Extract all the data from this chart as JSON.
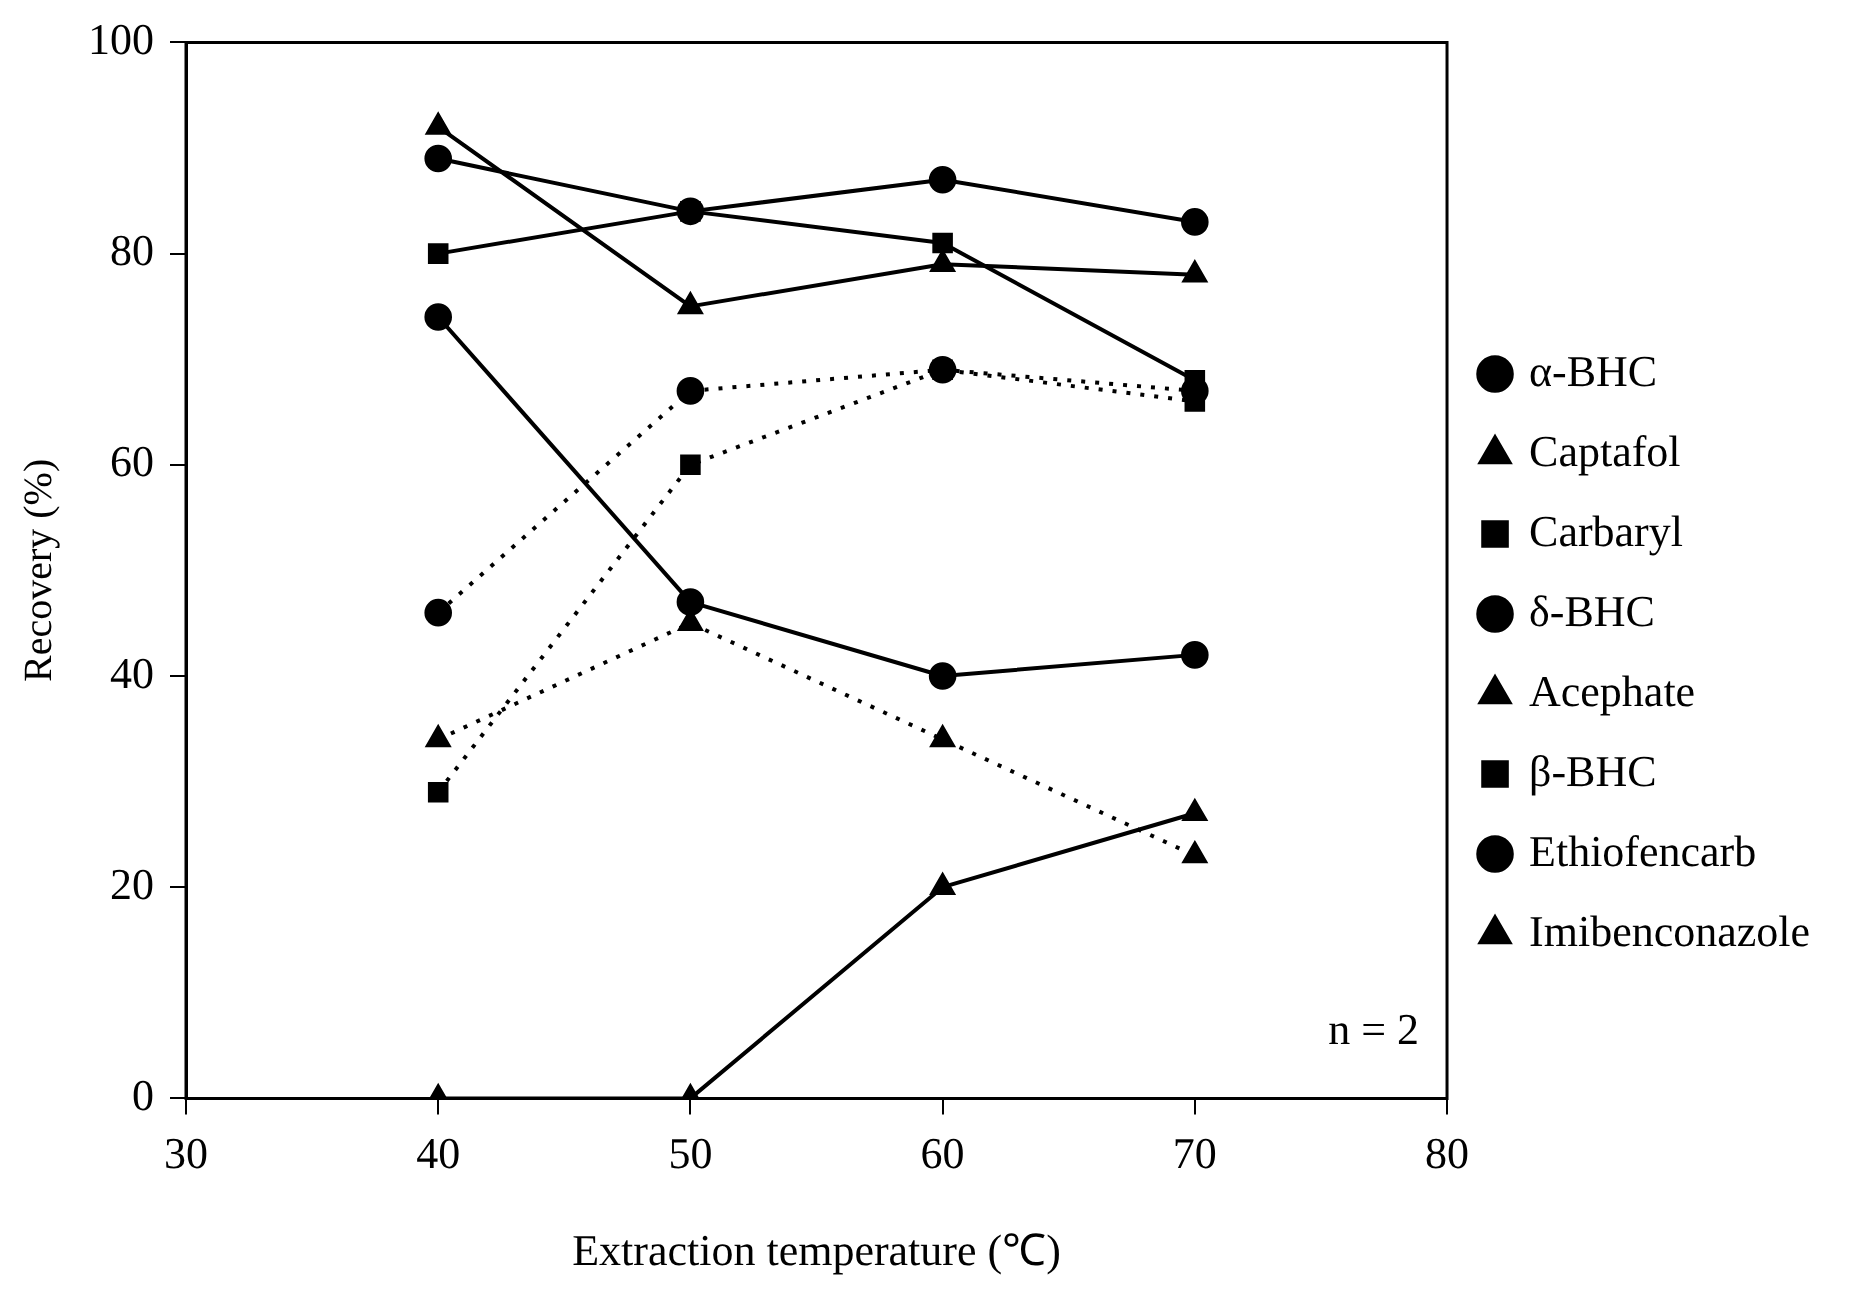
{
  "chart_data": {
    "type": "line",
    "xlabel": "Extraction temperature (℃)",
    "ylabel": "Recovery (%)",
    "x": [
      40,
      50,
      60,
      70
    ],
    "xlim": [
      30,
      80
    ],
    "xticks": [
      30,
      40,
      50,
      60,
      70,
      80
    ],
    "ylim": [
      0,
      100
    ],
    "yticks": [
      0,
      20,
      40,
      60,
      80,
      100
    ],
    "grid": false,
    "legend": "right",
    "annotations": [
      "n = 2"
    ],
    "series": [
      {
        "name": "α-BHC",
        "color": "#000000",
        "marker": "circle",
        "line_style": "solid",
        "values": [
          89,
          84,
          87,
          83
        ]
      },
      {
        "name": "Captafol",
        "color": "#000000",
        "marker": "triangle",
        "line_style": "solid",
        "values": [
          92,
          75,
          79,
          78
        ]
      },
      {
        "name": "Carbaryl",
        "color": "#000000",
        "marker": "square",
        "line_style": "solid",
        "values": [
          80,
          84,
          81,
          68
        ]
      },
      {
        "name": "δ-BHC",
        "color": "#000000",
        "marker": "circle",
        "line_style": "dotted",
        "values": [
          46,
          67,
          69,
          67
        ]
      },
      {
        "name": "Acephate",
        "color": "#000000",
        "marker": "triangle",
        "line_style": "dotted",
        "values": [
          34,
          45,
          34,
          23
        ]
      },
      {
        "name": "β-BHC",
        "color": "#000000",
        "marker": "square",
        "line_style": "dotted",
        "values": [
          29,
          60,
          69,
          66
        ]
      },
      {
        "name": "Ethiofencarb",
        "color": "#000000",
        "marker": "circle",
        "line_style": "solid",
        "values": [
          74,
          47,
          40,
          42
        ]
      },
      {
        "name": "Imibenconazole",
        "color": "#000000",
        "marker": "triangle",
        "line_style": "solid",
        "values": [
          0,
          0,
          20,
          27
        ]
      }
    ]
  }
}
